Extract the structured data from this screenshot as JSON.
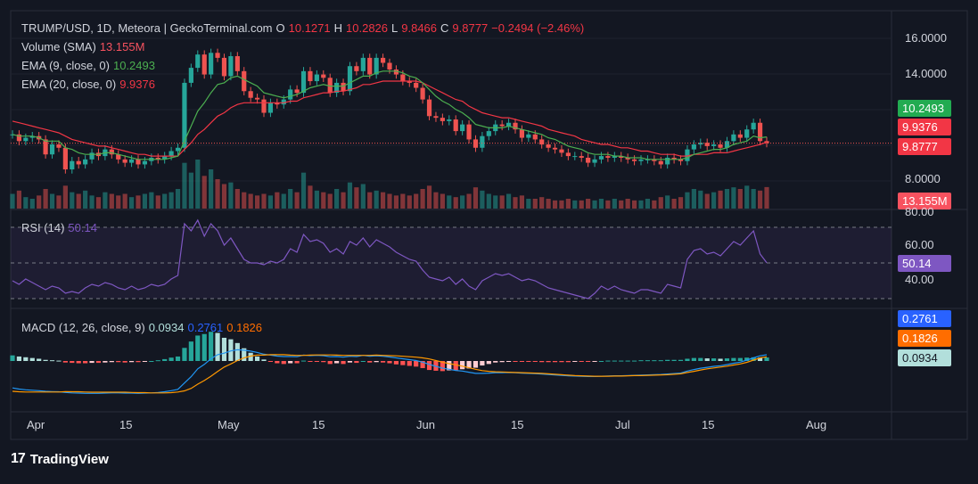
{
  "header": {
    "symbol": "TRUMP/USD, 1D, Meteora | GeckoTerminal.com",
    "o_label": "O",
    "o_value": "10.1271",
    "h_label": "H",
    "h_value": "10.2826",
    "l_label": "L",
    "l_value": "9.8466",
    "c_label": "C",
    "c_value": "9.8777",
    "change": "−0.2494 (−2.46%)"
  },
  "indicators": {
    "volume": {
      "label": "Volume (SMA)",
      "value": "13.155M"
    },
    "ema9": {
      "label": "EMA (9, close, 0)",
      "value": "10.2493"
    },
    "ema20": {
      "label": "EMA (20, close, 0)",
      "value": "9.9376"
    },
    "rsi": {
      "label": "RSI (14)",
      "value": "50.14"
    },
    "macd": {
      "label": "MACD (12, 26, close, 9)",
      "hist": "0.0934",
      "macd": "0.2761",
      "signal": "0.1826"
    }
  },
  "price_axis": {
    "ticks": [
      "16.0000",
      "14.0000",
      "8.0000"
    ],
    "labels": [
      {
        "text": "10.2493",
        "color": "#22ab51"
      },
      {
        "text": "9.9376",
        "color": "#f23645"
      },
      {
        "text": "9.8777",
        "color": "#f23645"
      },
      {
        "text": "13.155M",
        "color": "#f7525f"
      }
    ]
  },
  "rsi_axis": {
    "ticks": [
      "80.00",
      "60.00",
      "40.00"
    ],
    "label": {
      "text": "50.14",
      "color": "#7e57c2"
    }
  },
  "macd_axis": {
    "labels": [
      {
        "text": "0.2761",
        "color": "#2962ff"
      },
      {
        "text": "0.1826",
        "color": "#ff6d00"
      },
      {
        "text": "0.0934",
        "color": "#b2dfdb"
      }
    ]
  },
  "time_axis": [
    "Apr",
    "15",
    "May",
    "15",
    "Jun",
    "15",
    "Jul",
    "15",
    "Aug"
  ],
  "footer": {
    "brand": "TradingView",
    "logo": "17"
  },
  "colors": {
    "bg": "#131722",
    "up": "#26a69a",
    "down": "#ef5350",
    "ema9": "#4caf50",
    "ema20": "#f23645",
    "rsi": "#7e57c2",
    "macd": "#2196f3",
    "signal": "#ff9800"
  },
  "chart_data": [
    {
      "type": "candlestick",
      "title": "TRUMP/USD, 1D, Meteora",
      "x": [
        "Mar 31",
        "Apr 1",
        "Apr 2",
        "Apr 3",
        "Apr 4",
        "Apr 5",
        "Apr 6",
        "Apr 7",
        "Apr 8",
        "Apr 9",
        "Apr 10",
        "Apr 11",
        "Apr 12",
        "Apr 13",
        "Apr 14",
        "Apr 15",
        "Apr 16",
        "Apr 17",
        "Apr 18",
        "Apr 19",
        "Apr 20",
        "Apr 21",
        "Apr 22",
        "Apr 23",
        "Apr 24",
        "Apr 25",
        "Apr 26",
        "Apr 27",
        "Apr 28",
        "Apr 29",
        "Apr 30",
        "May 1",
        "May 2",
        "May 3",
        "May 4",
        "May 5",
        "May 6",
        "May 7",
        "May 8",
        "May 9",
        "May 10",
        "May 11",
        "May 12",
        "May 13",
        "May 14",
        "May 15",
        "May 16",
        "May 17",
        "May 18",
        "May 19",
        "May 20",
        "May 21",
        "May 22",
        "May 23",
        "May 24",
        "May 25",
        "May 26",
        "May 27",
        "May 28",
        "May 29",
        "May 30",
        "May 31",
        "Jun 1",
        "Jun 2",
        "Jun 3",
        "Jun 4",
        "Jun 5",
        "Jun 6",
        "Jun 7",
        "Jun 8",
        "Jun 9",
        "Jun 10",
        "Jun 11",
        "Jun 12",
        "Jun 13",
        "Jun 14",
        "Jun 15",
        "Jun 16",
        "Jun 17",
        "Jun 18",
        "Jun 19",
        "Jun 20",
        "Jun 21",
        "Jun 22",
        "Jun 23",
        "Jun 24",
        "Jun 25",
        "Jun 26",
        "Jun 27",
        "Jun 28",
        "Jun 29",
        "Jun 30",
        "Jul 1",
        "Jul 2",
        "Jul 3",
        "Jul 4",
        "Jul 5",
        "Jul 6",
        "Jul 7",
        "Jul 8",
        "Jul 9",
        "Jul 10",
        "Jul 11",
        "Jul 12",
        "Jul 13",
        "Jul 14",
        "Jul 15",
        "Jul 16",
        "Jul 17",
        "Jul 18",
        "Jul 19",
        "Jul 20",
        "Jul 21",
        "Jul 22",
        "Jul 23"
      ],
      "close": [
        10.4,
        10.0,
        10.2,
        10.3,
        10.1,
        9.2,
        9.8,
        9.6,
        8.3,
        8.8,
        8.6,
        8.9,
        9.3,
        9.1,
        9.5,
        9.2,
        8.9,
        8.7,
        8.9,
        8.6,
        8.8,
        9.0,
        8.9,
        9.1,
        9.4,
        9.6,
        13.5,
        14.4,
        15.2,
        14.0,
        15.3,
        15.0,
        13.9,
        15.1,
        14.2,
        13.0,
        12.6,
        12.5,
        11.7,
        12.3,
        12.2,
        12.5,
        13.1,
        12.9,
        14.2,
        13.6,
        14.0,
        13.8,
        12.9,
        13.5,
        13.0,
        14.5,
        14.2,
        15.0,
        14.0,
        15.0,
        14.7,
        14.3,
        14.0,
        13.6,
        13.5,
        13.2,
        12.5,
        11.5,
        11.4,
        11.2,
        11.3,
        10.6,
        11.0,
        10.1,
        9.6,
        10.3,
        10.6,
        11.0,
        10.9,
        11.1,
        10.7,
        10.2,
        10.4,
        10.1,
        9.8,
        9.6,
        9.5,
        9.3,
        9.1,
        9.1,
        9.0,
        8.7,
        8.9,
        9.1,
        9.0,
        9.1,
        9.0,
        8.9,
        8.8,
        8.9,
        8.9,
        8.8,
        8.6,
        9.0,
        8.9,
        8.8,
        9.5,
        9.8,
        9.9,
        9.7,
        9.8,
        9.6,
        10.0,
        10.4,
        10.2,
        10.7,
        11.1,
        10.0,
        9.8777
      ],
      "ema9": [
        10.4,
        10.3,
        10.3,
        10.3,
        10.2,
        10.0,
        10.0,
        10.0,
        9.6,
        9.5,
        9.3,
        9.2,
        9.2,
        9.2,
        9.3,
        9.3,
        9.2,
        9.1,
        9.0,
        8.9,
        8.9,
        8.9,
        8.9,
        8.9,
        9.0,
        9.1,
        10.0,
        10.9,
        11.8,
        12.3,
        12.9,
        13.4,
        13.5,
        13.8,
        13.9,
        13.7,
        13.5,
        13.3,
        12.9,
        12.8,
        12.7,
        12.6,
        12.7,
        12.8,
        13.0,
        13.2,
        13.3,
        13.4,
        13.3,
        13.3,
        13.3,
        13.5,
        13.7,
        13.9,
        13.9,
        14.1,
        14.2,
        14.2,
        14.2,
        14.1,
        13.9,
        13.8,
        13.5,
        13.1,
        12.7,
        12.4,
        12.2,
        11.9,
        11.7,
        11.4,
        11.0,
        10.9,
        10.8,
        10.8,
        10.8,
        10.9,
        10.8,
        10.7,
        10.6,
        10.5,
        10.4,
        10.2,
        10.1,
        9.9,
        9.7,
        9.6,
        9.5,
        9.3,
        9.2,
        9.2,
        9.2,
        9.1,
        9.1,
        9.0,
        9.0,
        9.0,
        8.9,
        8.9,
        8.9,
        8.9,
        8.9,
        8.9,
        9.0,
        9.2,
        9.3,
        9.4,
        9.5,
        9.5,
        9.6,
        9.8,
        9.9,
        10.0,
        10.3,
        10.2,
        10.2493
      ],
      "ema20": [
        11.2,
        11.1,
        11.0,
        10.9,
        10.8,
        10.7,
        10.6,
        10.5,
        10.3,
        10.1,
        10.0,
        9.9,
        9.8,
        9.7,
        9.7,
        9.6,
        9.5,
        9.4,
        9.3,
        9.2,
        9.2,
        9.1,
        9.1,
        9.1,
        9.1,
        9.1,
        9.5,
        9.9,
        10.4,
        10.7,
        11.1,
        11.5,
        11.7,
        12.0,
        12.2,
        12.3,
        12.3,
        12.3,
        12.3,
        12.3,
        12.3,
        12.3,
        12.4,
        12.4,
        12.6,
        12.7,
        12.8,
        12.9,
        12.9,
        13.0,
        13.0,
        13.1,
        13.2,
        13.4,
        13.4,
        13.5,
        13.6,
        13.6,
        13.6,
        13.6,
        13.6,
        13.6,
        13.5,
        13.3,
        13.1,
        12.9,
        12.7,
        12.5,
        12.4,
        12.1,
        11.9,
        11.7,
        11.6,
        11.5,
        11.4,
        11.4,
        11.3,
        11.2,
        11.1,
        11.0,
        10.9,
        10.7,
        10.6,
        10.5,
        10.4,
        10.3,
        10.1,
        10.0,
        9.9,
        9.8,
        9.8,
        9.7,
        9.6,
        9.6,
        9.5,
        9.4,
        9.4,
        9.3,
        9.2,
        9.2,
        9.2,
        9.1,
        9.1,
        9.2,
        9.2,
        9.2,
        9.3,
        9.3,
        9.3,
        9.4,
        9.5,
        9.6,
        9.7,
        9.8,
        9.9376
      ],
      "volume_m": [
        9,
        11,
        7,
        6,
        8,
        12,
        9,
        8,
        14,
        10,
        9,
        11,
        8,
        7,
        10,
        9,
        8,
        9,
        7,
        8,
        9,
        10,
        8,
        9,
        10,
        12,
        28,
        22,
        30,
        20,
        24,
        18,
        15,
        16,
        12,
        10,
        9,
        8,
        9,
        8,
        10,
        9,
        12,
        10,
        22,
        14,
        11,
        10,
        9,
        12,
        10,
        16,
        13,
        15,
        10,
        11,
        10,
        9,
        8,
        9,
        8,
        9,
        12,
        14,
        10,
        9,
        8,
        7,
        8,
        9,
        13,
        11,
        9,
        8,
        8,
        9,
        7,
        8,
        6,
        6,
        7,
        6,
        5,
        5,
        6,
        5,
        5,
        6,
        5,
        6,
        5,
        6,
        5,
        6,
        5,
        5,
        6,
        5,
        7,
        8,
        6,
        7,
        10,
        12,
        11,
        9,
        10,
        11,
        12,
        13,
        12,
        14,
        12,
        11,
        13.155
      ]
    },
    {
      "type": "line",
      "title": "RSI (14)",
      "ylim": [
        20,
        80
      ],
      "values": [
        40,
        38,
        41,
        39,
        37,
        35,
        37,
        36,
        33,
        34,
        33,
        36,
        38,
        37,
        39,
        38,
        36,
        35,
        37,
        35,
        36,
        38,
        37,
        38,
        41,
        43,
        72,
        68,
        74,
        65,
        72,
        68,
        60,
        64,
        58,
        52,
        50,
        50,
        49,
        51,
        50,
        52,
        58,
        56,
        66,
        62,
        63,
        61,
        56,
        58,
        55,
        62,
        60,
        64,
        59,
        63,
        61,
        59,
        56,
        54,
        52,
        51,
        46,
        42,
        41,
        40,
        42,
        38,
        41,
        37,
        35,
        40,
        42,
        44,
        43,
        44,
        42,
        40,
        41,
        40,
        38,
        36,
        35,
        34,
        33,
        32,
        31,
        30,
        33,
        37,
        35,
        37,
        35,
        34,
        33,
        35,
        35,
        34,
        33,
        38,
        37,
        36,
        52,
        57,
        58,
        55,
        56,
        54,
        58,
        62,
        60,
        64,
        68,
        55,
        50.14
      ]
    },
    {
      "type": "bar+line",
      "title": "MACD (12, 26, close, 9)",
      "histogram": [
        0.15,
        0.12,
        0.1,
        0.08,
        0.06,
        0.03,
        0.02,
        0.01,
        -0.04,
        -0.05,
        -0.06,
        -0.06,
        -0.05,
        -0.05,
        -0.04,
        -0.03,
        -0.03,
        -0.04,
        -0.03,
        -0.03,
        -0.02,
        0.0,
        0.02,
        0.05,
        0.09,
        0.12,
        0.35,
        0.52,
        0.68,
        0.72,
        0.78,
        0.75,
        0.62,
        0.58,
        0.48,
        0.34,
        0.22,
        0.12,
        0.04,
        -0.02,
        -0.06,
        -0.08,
        -0.06,
        -0.06,
        0.01,
        -0.02,
        -0.02,
        -0.03,
        -0.08,
        -0.06,
        -0.08,
        -0.04,
        -0.05,
        0.0,
        -0.04,
        -0.03,
        -0.04,
        -0.06,
        -0.09,
        -0.11,
        -0.13,
        -0.15,
        -0.19,
        -0.24,
        -0.26,
        -0.27,
        -0.25,
        -0.25,
        -0.22,
        -0.2,
        -0.18,
        -0.12,
        -0.08,
        -0.04,
        -0.03,
        -0.01,
        -0.01,
        -0.02,
        -0.02,
        -0.02,
        -0.03,
        -0.03,
        -0.03,
        -0.03,
        -0.03,
        -0.02,
        -0.02,
        -0.02,
        -0.01,
        0.0,
        0.01,
        0.01,
        0.01,
        0.01,
        0.01,
        0.02,
        0.02,
        0.02,
        0.02,
        0.03,
        0.03,
        0.03,
        0.06,
        0.08,
        0.08,
        0.07,
        0.07,
        0.06,
        0.07,
        0.08,
        0.08,
        0.09,
        0.1,
        0.09,
        0.0934
      ],
      "macd": [
        -1.2,
        -1.25,
        -1.28,
        -1.3,
        -1.32,
        -1.35,
        -1.36,
        -1.37,
        -1.4,
        -1.42,
        -1.43,
        -1.44,
        -1.44,
        -1.44,
        -1.43,
        -1.42,
        -1.42,
        -1.43,
        -1.43,
        -1.44,
        -1.43,
        -1.42,
        -1.4,
        -1.37,
        -1.32,
        -1.26,
        -0.98,
        -0.7,
        -0.35,
        -0.15,
        0.1,
        0.28,
        0.35,
        0.45,
        0.5,
        0.48,
        0.44,
        0.38,
        0.3,
        0.26,
        0.22,
        0.2,
        0.2,
        0.19,
        0.26,
        0.24,
        0.25,
        0.24,
        0.19,
        0.2,
        0.17,
        0.21,
        0.2,
        0.25,
        0.21,
        0.23,
        0.21,
        0.18,
        0.14,
        0.1,
        0.06,
        0.02,
        -0.05,
        -0.15,
        -0.24,
        -0.32,
        -0.37,
        -0.42,
        -0.45,
        -0.5,
        -0.55,
        -0.55,
        -0.54,
        -0.52,
        -0.52,
        -0.51,
        -0.52,
        -0.54,
        -0.55,
        -0.56,
        -0.58,
        -0.6,
        -0.62,
        -0.64,
        -0.66,
        -0.67,
        -0.68,
        -0.69,
        -0.69,
        -0.68,
        -0.67,
        -0.66,
        -0.66,
        -0.65,
        -0.64,
        -0.63,
        -0.62,
        -0.61,
        -0.6,
        -0.58,
        -0.56,
        -0.54,
        -0.45,
        -0.38,
        -0.32,
        -0.28,
        -0.24,
        -0.21,
        -0.16,
        -0.1,
        -0.05,
        0.04,
        0.14,
        0.23,
        0.2761
      ],
      "signal": [
        -1.35,
        -1.37,
        -1.38,
        -1.38,
        -1.38,
        -1.38,
        -1.38,
        -1.38,
        -1.36,
        -1.37,
        -1.37,
        -1.38,
        -1.39,
        -1.39,
        -1.39,
        -1.39,
        -1.39,
        -1.39,
        -1.4,
        -1.41,
        -1.41,
        -1.42,
        -1.42,
        -1.42,
        -1.41,
        -1.38,
        -1.33,
        -1.22,
        -1.03,
        -0.87,
        -0.68,
        -0.47,
        -0.27,
        -0.13,
        0.02,
        0.14,
        0.22,
        0.26,
        0.26,
        0.28,
        0.28,
        0.28,
        0.26,
        0.25,
        0.25,
        0.26,
        0.27,
        0.27,
        0.27,
        0.26,
        0.25,
        0.25,
        0.25,
        0.25,
        0.25,
        0.26,
        0.25,
        0.24,
        0.23,
        0.21,
        0.19,
        0.17,
        0.14,
        0.09,
        0.02,
        -0.05,
        -0.12,
        -0.17,
        -0.23,
        -0.3,
        -0.37,
        -0.43,
        -0.46,
        -0.48,
        -0.49,
        -0.5,
        -0.51,
        -0.52,
        -0.53,
        -0.54,
        -0.55,
        -0.57,
        -0.59,
        -0.61,
        -0.63,
        -0.65,
        -0.66,
        -0.67,
        -0.68,
        -0.68,
        -0.68,
        -0.67,
        -0.67,
        -0.66,
        -0.65,
        -0.65,
        -0.64,
        -0.63,
        -0.62,
        -0.61,
        -0.59,
        -0.57,
        -0.51,
        -0.46,
        -0.4,
        -0.35,
        -0.31,
        -0.27,
        -0.23,
        -0.18,
        -0.13,
        -0.06,
        0.04,
        0.14,
        0.1826
      ]
    }
  ]
}
